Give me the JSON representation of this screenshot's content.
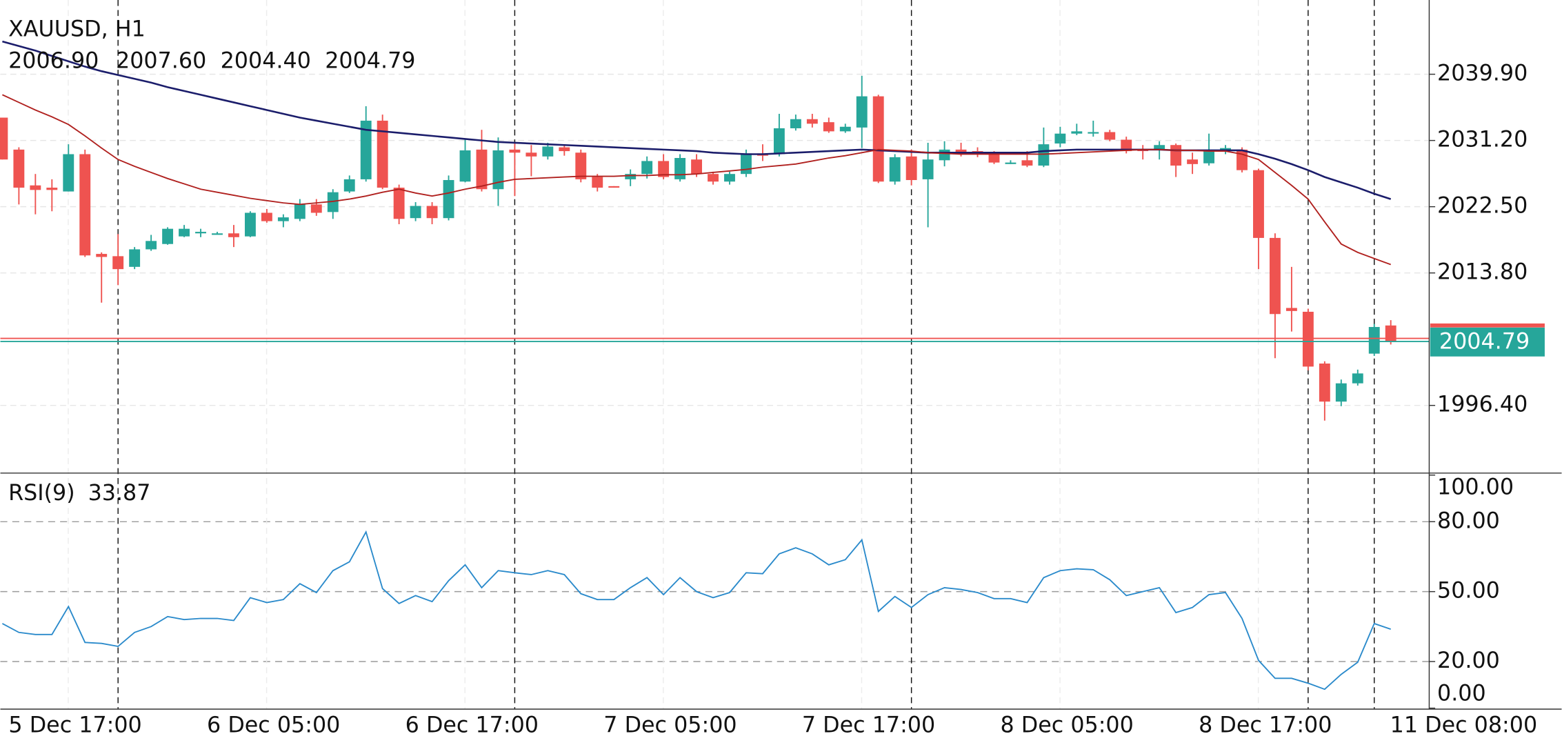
{
  "chart_data": {
    "type": "candlestick",
    "title": "XAUUSD, H1",
    "ohlc_labels": [
      "2006.90",
      "2007.60",
      "2004.40",
      "2004.79"
    ],
    "categories": [
      null,
      null,
      null,
      null,
      null,
      null,
      null,
      "5 Dec 17:00",
      null,
      null,
      null,
      null,
      null,
      null,
      null,
      null,
      null,
      null,
      null,
      "6 Dec 05:00",
      null,
      null,
      null,
      null,
      null,
      null,
      null,
      null,
      null,
      null,
      null,
      "6 Dec 17:00",
      null,
      null,
      null,
      null,
      null,
      null,
      null,
      null,
      null,
      null,
      null,
      "7 Dec 05:00",
      null,
      null,
      null,
      null,
      null,
      null,
      null,
      null,
      null,
      null,
      null,
      "7 Dec 17:00",
      null,
      null,
      null,
      null,
      null,
      null,
      null,
      null,
      null,
      null,
      null,
      "8 Dec 05:00",
      null,
      null,
      null,
      null,
      null,
      null,
      null,
      null,
      null,
      null,
      null,
      "8 Dec 17:00",
      null,
      null,
      null,
      null,
      null,
      null,
      null,
      null,
      null,
      null,
      null,
      "11 Dec 08:00"
    ],
    "open": [
      2034.2,
      2030.0,
      2025.3,
      2025.0,
      2024.5,
      2029.4,
      2016.3,
      2016.0,
      2014.6,
      2016.9,
      2017.6,
      2018.6,
      2019.0,
      2019.0,
      2019.0,
      2018.6,
      2021.7,
      2020.6,
      2020.9,
      2022.8,
      2021.8,
      2024.5,
      2026.1,
      2033.8,
      2025.0,
      2021.0,
      2022.6,
      2021.0,
      2025.8,
      2030.0,
      2024.8,
      2030.0,
      2029.6,
      2029.1,
      2030.3,
      2029.6,
      2026.4,
      2025.2,
      2026.1,
      2026.8,
      2028.5,
      2026.1,
      2028.7,
      2026.8,
      2025.8,
      2026.8,
      2029.5,
      2029.4,
      2032.8,
      2034.0,
      2033.6,
      2032.4,
      2032.9,
      2037.0,
      2025.8,
      2029.1,
      2026.1,
      2028.6,
      2030.0,
      2029.8,
      2029.4,
      2028.3,
      2028.6,
      2027.9,
      2030.8,
      2032.1,
      2032.3,
      2032.3,
      2031.3,
      2030.0,
      2030.0,
      2030.6,
      2028.7,
      2028.2,
      2029.8,
      2030.0,
      2027.3,
      2018.4,
      2009.2,
      2008.7,
      2001.9,
      1996.9,
      1999.3,
      2003.2,
      2006.9,
      null,
      null,
      null,
      null,
      null,
      null,
      null
    ],
    "high": [
      2034.2,
      2030.3,
      2026.8,
      2026.1,
      2030.7,
      2030.0,
      2016.5,
      2018.9,
      2017.2,
      2018.8,
      2019.8,
      2020.1,
      2019.6,
      2019.2,
      2020.1,
      2021.9,
      2022.2,
      2021.5,
      2023.5,
      2023.5,
      2024.8,
      2026.6,
      2035.7,
      2034.6,
      2025.4,
      2023.1,
      2023.1,
      2026.6,
      2031.3,
      2032.6,
      2031.6,
      2030.9,
      2030.6,
      2030.9,
      2030.6,
      2030.0,
      2026.8,
      2025.2,
      2027.4,
      2029.1,
      2029.4,
      2029.4,
      2029.4,
      2027.1,
      2027.1,
      2030.0,
      2030.7,
      2034.7,
      2034.6,
      2034.7,
      2034.2,
      2033.4,
      2039.7,
      2037.2,
      2029.4,
      2030.0,
      2030.9,
      2031.1,
      2030.9,
      2030.3,
      2029.8,
      2028.6,
      2029.8,
      2032.9,
      2033.0,
      2033.4,
      2033.8,
      2032.6,
      2031.7,
      2030.6,
      2031.1,
      2030.8,
      2029.6,
      2032.1,
      2030.6,
      2030.3,
      2027.5,
      2019.0,
      2014.6,
      2009.1,
      2002.2,
      1999.8,
      2001.1,
      2007.1,
      2007.6,
      null,
      null,
      null,
      null,
      null,
      null,
      null
    ],
    "low": [
      2028.7,
      2022.8,
      2021.5,
      2021.9,
      2024.5,
      2015.9,
      2009.9,
      2012.2,
      2014.3,
      2016.7,
      2017.5,
      2018.5,
      2018.5,
      2018.9,
      2017.2,
      2018.5,
      2020.4,
      2019.8,
      2020.6,
      2021.3,
      2020.9,
      2024.3,
      2025.8,
      2024.8,
      2020.2,
      2020.6,
      2020.2,
      2020.7,
      2025.7,
      2024.5,
      2022.6,
      2023.9,
      2026.5,
      2028.7,
      2029.2,
      2025.7,
      2024.5,
      2025.0,
      2025.2,
      2026.2,
      2026.1,
      2025.8,
      2026.4,
      2025.4,
      2025.4,
      2026.4,
      2028.5,
      2029.1,
      2032.5,
      2032.9,
      2032.2,
      2032.2,
      2030.2,
      2025.6,
      2025.4,
      2025.3,
      2019.8,
      2027.8,
      2029.1,
      2029.0,
      2028.1,
      2028.1,
      2027.7,
      2027.7,
      2030.3,
      2031.9,
      2031.7,
      2031.1,
      2029.5,
      2028.7,
      2028.7,
      2026.4,
      2026.8,
      2027.9,
      2029.4,
      2027.0,
      2014.3,
      2002.6,
      2006.1,
      2001.0,
      1994.4,
      1996.3,
      1999.0,
      2002.9,
      2004.4,
      null,
      null,
      null,
      null,
      null,
      null,
      null
    ],
    "close": [
      2028.7,
      2025.0,
      2024.7,
      2024.7,
      2029.4,
      2016.1,
      2015.9,
      2014.3,
      2016.9,
      2018.0,
      2019.6,
      2019.6,
      2019.2,
      2019.0,
      2018.5,
      2021.7,
      2020.6,
      2021.1,
      2022.8,
      2021.7,
      2024.4,
      2026.1,
      2033.8,
      2025.0,
      2020.9,
      2022.6,
      2021.0,
      2026.0,
      2029.9,
      2024.8,
      2029.9,
      2029.6,
      2029.1,
      2030.4,
      2029.8,
      2026.1,
      2025.0,
      2025.0,
      2026.8,
      2028.5,
      2026.4,
      2028.9,
      2026.8,
      2025.8,
      2026.8,
      2029.5,
      2029.2,
      2032.8,
      2034.0,
      2033.4,
      2032.4,
      2033.0,
      2037.0,
      2025.8,
      2029.0,
      2026.0,
      2028.7,
      2030.0,
      2029.5,
      2029.4,
      2028.3,
      2028.3,
      2027.9,
      2030.7,
      2032.1,
      2032.4,
      2032.3,
      2031.3,
      2029.8,
      2029.9,
      2030.6,
      2027.9,
      2028.1,
      2029.8,
      2030.2,
      2027.3,
      2018.4,
      2008.4,
      2008.8,
      2001.5,
      1996.9,
      1999.3,
      2000.6,
      2006.7,
      2004.79,
      null,
      null,
      null,
      null,
      null,
      null,
      null
    ],
    "up_color": "#26a69a",
    "down_color": "#ef5350",
    "ask_price": 2005.2,
    "ask_color": "#ef5350",
    "moving_averages": [
      {
        "color": "#1b1d6b",
        "values": [
          2044.2,
          2043.6,
          2043.0,
          2042.3,
          2041.6,
          2040.9,
          2040.3,
          2039.8,
          2039.3,
          2038.8,
          2038.2,
          2037.7,
          2037.2,
          2036.7,
          2036.2,
          2035.7,
          2035.2,
          2034.7,
          2034.2,
          2033.8,
          2033.4,
          2033.0,
          2032.6,
          2032.4,
          2032.2,
          2032.0,
          2031.8,
          2031.6,
          2031.4,
          2031.2,
          2031.0,
          2030.9,
          2030.8,
          2030.7,
          2030.6,
          2030.5,
          2030.4,
          2030.3,
          2030.2,
          2030.1,
          2030.0,
          2029.9,
          2029.8,
          2029.6,
          2029.5,
          2029.4,
          2029.4,
          2029.5,
          2029.6,
          2029.7,
          2029.8,
          2029.9,
          2030.0,
          2029.9,
          2029.8,
          2029.7,
          2029.6,
          2029.6,
          2029.6,
          2029.6,
          2029.6,
          2029.6,
          2029.6,
          2029.8,
          2029.9,
          2030.0,
          2030.0,
          2030.0,
          2030.0,
          2030.0,
          2030.0,
          2029.9,
          2029.9,
          2029.9,
          2029.9,
          2029.9,
          2029.4,
          2028.8,
          2028.1,
          2027.3,
          2026.4,
          2025.7,
          2025.0,
          2024.2,
          2023.5,
          null,
          null,
          null,
          null,
          null,
          null,
          null
        ]
      },
      {
        "color": "#b0201e",
        "values": [
          2037.2,
          2036.2,
          2035.2,
          2034.3,
          2033.3,
          2031.8,
          2030.2,
          2028.7,
          2027.8,
          2027.0,
          2026.2,
          2025.5,
          2024.8,
          2024.4,
          2024.0,
          2023.6,
          2023.3,
          2023.0,
          2022.8,
          2023.0,
          2023.2,
          2023.5,
          2023.9,
          2024.4,
          2024.8,
          2024.3,
          2023.9,
          2024.3,
          2024.8,
          2025.2,
          2025.7,
          2026.1,
          2026.2,
          2026.3,
          2026.4,
          2026.5,
          2026.5,
          2026.5,
          2026.6,
          2026.6,
          2026.7,
          2026.7,
          2026.8,
          2027.0,
          2027.2,
          2027.4,
          2027.7,
          2027.9,
          2028.1,
          2028.5,
          2028.9,
          2029.2,
          2029.6,
          2030.0,
          2029.9,
          2029.8,
          2029.6,
          2029.5,
          2029.4,
          2029.4,
          2029.4,
          2029.4,
          2029.4,
          2029.4,
          2029.5,
          2029.6,
          2029.7,
          2029.8,
          2029.9,
          2030.0,
          2030.0,
          2029.9,
          2029.9,
          2029.8,
          2029.8,
          2029.4,
          2028.7,
          2027.0,
          2025.3,
          2023.5,
          2020.5,
          2017.6,
          2016.5,
          2015.7,
          2014.9,
          null,
          null,
          null,
          null,
          null,
          null,
          null
        ]
      }
    ],
    "ylim": [
      1987.64,
      2049.65
    ],
    "yticks": [
      {
        "value": 1996.4,
        "label": "1996.40"
      },
      {
        "value": 2013.8,
        "label": "2013.80"
      },
      {
        "value": 2022.5,
        "label": "2022.50"
      },
      {
        "value": 2031.2,
        "label": "2031.20"
      },
      {
        "value": 2039.9,
        "label": "2039.90"
      }
    ],
    "grid": true,
    "rsi": {
      "type": "line",
      "name": "RSI(9)",
      "color": "#2a8acb",
      "values": [
        36.3,
        32.5,
        31.6,
        31.6,
        43.6,
        28.2,
        27.8,
        26.5,
        32.5,
        35.0,
        39.3,
        38.0,
        38.5,
        38.5,
        37.6,
        47.4,
        45.3,
        46.6,
        53.4,
        49.6,
        59.0,
        62.8,
        75.6,
        51.3,
        44.9,
        48.3,
        45.7,
        54.7,
        61.5,
        51.7,
        59.0,
        58.1,
        57.3,
        59.0,
        57.3,
        49.1,
        46.6,
        46.6,
        51.7,
        56.0,
        48.7,
        56.0,
        50.0,
        47.4,
        49.6,
        58.1,
        57.7,
        66.2,
        68.8,
        66.2,
        61.5,
        63.7,
        72.2,
        41.5,
        47.9,
        43.2,
        48.7,
        51.7,
        50.9,
        49.6,
        47.0,
        47.0,
        45.3,
        56.0,
        59.0,
        59.8,
        59.4,
        55.1,
        48.3,
        50.0,
        51.7,
        41.0,
        43.2,
        48.7,
        49.6,
        38.5,
        20.5,
        12.8,
        12.8,
        10.7,
        8.1,
        14.5,
        19.7,
        36.3,
        33.87,
        null,
        null,
        null,
        null,
        null,
        null,
        null
      ],
      "ylim": [
        0,
        100
      ],
      "yticks": [
        {
          "value": 0,
          "label": "0.00"
        },
        {
          "value": 20,
          "label": "20.00"
        },
        {
          "value": 50,
          "label": "50.00"
        },
        {
          "value": 80,
          "label": "80.00"
        },
        {
          "value": 100,
          "label": "100.00"
        }
      ]
    }
  }
}
